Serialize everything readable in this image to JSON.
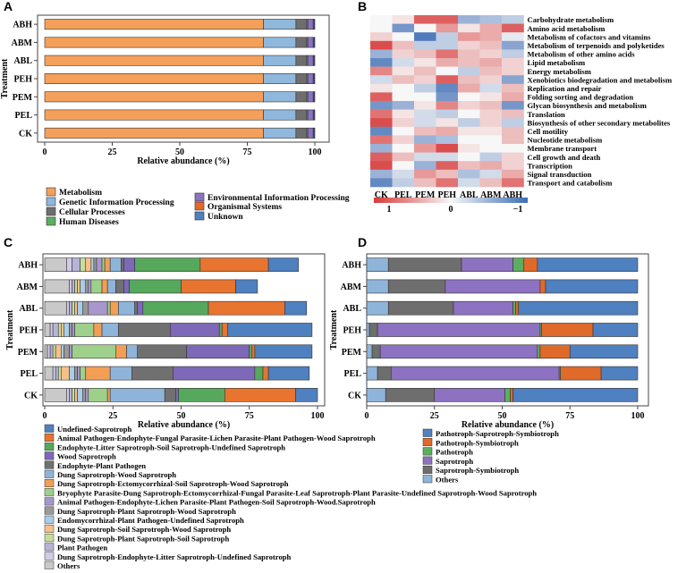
{
  "chart_data": [
    {
      "panel": "A",
      "type": "bar",
      "orientation": "horizontal",
      "stacked": true,
      "xlabel": "Relative abundance (%)",
      "ylabel": "Treatment",
      "xlim": [
        0,
        100
      ],
      "xticks": [
        "0",
        "25",
        "50",
        "75",
        "100"
      ],
      "categories": [
        "CK",
        "PEL",
        "PEM",
        "PEH",
        "ABL",
        "ABM",
        "ABH"
      ],
      "series": [
        {
          "name": "Metabolism",
          "color": "#F5A05A",
          "values": [
            81,
            81,
            81,
            81,
            81,
            81,
            81
          ]
        },
        {
          "name": "Genetic Information Processing",
          "color": "#8FB8DC",
          "values": [
            12,
            12,
            12,
            12,
            12,
            12,
            12
          ]
        },
        {
          "name": "Cellular Processes",
          "color": "#6E6E6E",
          "values": [
            4,
            4,
            4,
            4,
            4,
            4,
            4
          ]
        },
        {
          "name": "Human Diseases",
          "color": "#5BAE60",
          "values": [
            0.4,
            0.4,
            0.4,
            0.4,
            0.4,
            0.4,
            0.4
          ]
        },
        {
          "name": "Environmental Information Processing",
          "color": "#8C72C0",
          "values": [
            2,
            2,
            2,
            2,
            2,
            2,
            2
          ]
        },
        {
          "name": "Organismal Systems",
          "color": "#E06A2A",
          "values": [
            0.3,
            0.3,
            0.3,
            0.3,
            0.3,
            0.3,
            0.3
          ]
        },
        {
          "name": "Unknown",
          "color": "#4F80BF",
          "values": [
            0.3,
            0.3,
            0.3,
            0.3,
            0.3,
            0.3,
            0.3
          ]
        }
      ],
      "legend": [
        "Metabolism",
        "Genetic Information Processing",
        "Cellular Processes",
        "Human Diseases",
        "Environmental Information Processing",
        "Organismal Systems",
        "Unknown"
      ]
    },
    {
      "panel": "B",
      "type": "heatmap",
      "columns": [
        "CK",
        "PEL",
        "PEM",
        "PEH",
        "ABL",
        "ABM",
        "ABH"
      ],
      "rows": [
        "Carbohydrate metabolism",
        "Amino acid metabolism",
        "Metabolism of cofactors and vitamins",
        "Metabolism of terpenoids and polyketides",
        "Metabolism of other amino acids",
        "Lipid metabolism",
        "Energy metabolism",
        "Xenobiotics biodegradation and metabolism",
        "Replication and repair",
        "Folding sorting and degradation",
        "Glycan biosynthesis and metabolism",
        "Translation",
        "Biosynthesis of other secondary metabolites",
        "Cell motility",
        "Nucleotide metabolism",
        "Membrane transport",
        "Cell growth and death",
        "Transcription",
        "Signal transduction",
        "Transport and catabolism"
      ],
      "values": [
        [
          0.0,
          0.1,
          0.8,
          0.8,
          -0.5,
          -0.4,
          -0.3
        ],
        [
          0.0,
          -0.7,
          0.0,
          0.5,
          0.1,
          0.4,
          0.8
        ],
        [
          0.2,
          0.0,
          -0.9,
          -0.3,
          0.5,
          0.4,
          -0.1
        ],
        [
          0.9,
          0.3,
          -0.3,
          -0.3,
          0.2,
          0.3,
          -0.6
        ],
        [
          -0.5,
          0.2,
          0.3,
          0.7,
          0.3,
          0.2,
          -0.3
        ],
        [
          -0.8,
          -0.2,
          0.1,
          0.4,
          0.3,
          0.4,
          0.2
        ],
        [
          0.6,
          0.1,
          0.3,
          0.0,
          -0.3,
          0.3,
          0.2
        ],
        [
          -0.2,
          0.3,
          0.2,
          0.8,
          0.3,
          0.2,
          -0.6
        ],
        [
          0.1,
          0.0,
          -0.3,
          -0.8,
          0.4,
          -0.2,
          0.3
        ],
        [
          0.8,
          0.0,
          0.0,
          -0.7,
          0.0,
          0.1,
          0.4
        ],
        [
          -0.7,
          -0.5,
          0.1,
          0.6,
          0.2,
          0.3,
          -0.7
        ],
        [
          0.7,
          0.1,
          -0.2,
          -0.3,
          0.0,
          0.2,
          0.3
        ],
        [
          0.9,
          0.2,
          -0.2,
          0.1,
          -0.3,
          0.2,
          -0.3
        ],
        [
          -0.8,
          0.0,
          0.3,
          0.4,
          0.1,
          0.1,
          0.3
        ],
        [
          0.7,
          0.2,
          -0.5,
          -0.4,
          0.0,
          0.0,
          0.3
        ],
        [
          -0.5,
          0.0,
          0.5,
          0.9,
          0.1,
          0.0,
          0.0
        ],
        [
          0.8,
          0.3,
          -0.2,
          -0.2,
          0.0,
          -0.3,
          0.2
        ],
        [
          0.9,
          0.0,
          -0.5,
          0.8,
          0.3,
          0.4,
          0.2
        ],
        [
          -0.5,
          -0.2,
          0.5,
          0.3,
          -0.4,
          -0.2,
          0.4
        ],
        [
          -0.8,
          -0.3,
          0.3,
          0.7,
          -0.2,
          0.3,
          0.7
        ]
      ],
      "colorbar": {
        "min": -1,
        "max": 1,
        "ticks": [
          "1",
          "0",
          "−1"
        ],
        "low_color": "#D73A3A",
        "mid_color": "#F7F7F7",
        "high_color": "#3E6DB5"
      }
    },
    {
      "panel": "C",
      "type": "bar",
      "orientation": "horizontal",
      "stacked": true,
      "xlabel": "Relative abundance (%)",
      "ylabel": "Treatment",
      "xlim": [
        0,
        100
      ],
      "xticks": [
        "0",
        "25",
        "50",
        "75",
        "100"
      ],
      "categories": [
        "CK",
        "PEL",
        "PEM",
        "PEH",
        "ABL",
        "ABM",
        "ABH"
      ],
      "series": [
        {
          "name": "Others",
          "color": "#C9C9C9",
          "values": [
            8,
            3,
            1,
            2,
            8,
            9,
            8
          ]
        },
        {
          "name": "Dung Saprotroph-Endophyte-Litter Saprotroph-Undefined Saprotroph",
          "color": "#D2CBE6",
          "values": [
            1,
            1,
            1,
            1,
            1,
            1,
            2
          ]
        },
        {
          "name": "Plant Pathogen",
          "color": "#B7B2D8",
          "values": [
            1,
            1,
            1,
            2,
            1,
            1,
            3
          ]
        },
        {
          "name": "Dung Saprotroph-Plant Saprotroph-Soil Saprotroph",
          "color": "#C6DE9C",
          "values": [
            1,
            1,
            1,
            1,
            1,
            1,
            2
          ]
        },
        {
          "name": "Dung Saprotroph-Soil Saprotroph-Wood Saprotroph",
          "color": "#F7C08A",
          "values": [
            1,
            3,
            2,
            1,
            1,
            1,
            2
          ]
        },
        {
          "name": "Endomycorrhizal-Plant Pathogen-Undefined Saprotroph",
          "color": "#A9CDE6",
          "values": [
            2,
            2,
            1,
            2,
            2,
            2,
            1
          ]
        },
        {
          "name": "Dung Saprotroph-Plant Saprotroph-Wood Saprotroph",
          "color": "#999999",
          "values": [
            1,
            1,
            2,
            1,
            2,
            1,
            1
          ]
        },
        {
          "name": "Animal Pathogen-Endophyte-Lichen Parasite-Plant Pathogen-Soil Saprotroph-Wood.Saprotroph",
          "color": "#A797CC",
          "values": [
            1,
            1,
            1,
            1,
            7,
            1,
            2
          ]
        },
        {
          "name": "Bryophyte Parasite-Dung Saprotroph-Ectomycorrhizal-Fungal Parasite-Leaf Saprotroph-Plant Parasite-Undefined Saprotroph-Wood Saprotroph",
          "color": "#9ED08B",
          "values": [
            7,
            2,
            16,
            7,
            1,
            4,
            1
          ]
        },
        {
          "name": "Dung Saprotroph-Ectomycorrhizal-Soil Saprotroph-Wood Saprotroph",
          "color": "#F29E55",
          "values": [
            1,
            9,
            4,
            3,
            3,
            2,
            2
          ]
        },
        {
          "name": "Dung Saprotroph-Wood Saprotroph",
          "color": "#8FB4D9",
          "values": [
            20,
            8,
            4,
            6,
            6,
            3,
            4
          ]
        },
        {
          "name": "Endophyte-Plant Pathogen",
          "color": "#707070",
          "values": [
            4,
            15,
            18,
            19,
            1,
            3,
            1
          ]
        },
        {
          "name": "Wood Saprotroph",
          "color": "#7E68B8",
          "values": [
            1,
            30,
            23,
            18,
            2,
            2,
            4
          ]
        },
        {
          "name": "Endophyte-Litter Saprotroph-Soil Saprotroph-Undefined Saprotroph",
          "color": "#56A85C",
          "values": [
            17,
            3,
            1,
            1,
            24,
            19,
            24
          ]
        },
        {
          "name": "Animal Pathogen-Endophyte-Fungal Parasite-Lichen Parasite-Plant Pathogen-Wood Saprotroph",
          "color": "#E8742F",
          "values": [
            26,
            2,
            1,
            2,
            28,
            20,
            25
          ]
        },
        {
          "name": "Undefined-Saprotroph",
          "color": "#4F80BF",
          "values": [
            8,
            15,
            21,
            31,
            8,
            8,
            11
          ]
        }
      ],
      "legend": [
        "Undefined-Saprotroph",
        "Animal Pathogen-Endophyte-Fungal Parasite-Lichen Parasite-Plant Pathogen-Wood Saprotroph",
        "Endophyte-Litter Saprotroph-Soil Saprotroph-Undefined Saprotroph",
        "Wood Saprotroph",
        "Endophyte-Plant Pathogen",
        "Dung Saprotroph-Wood Saprotroph",
        "Dung Saprotroph-Ectomycorrhizal-Soil Saprotroph-Wood Saprotroph",
        "Bryophyte Parasite-Dung Saprotroph-Ectomycorrhizal-Fungal Parasite-Leaf Saprotroph-Plant Parasite-Undefined Saprotroph-Wood Saprotroph",
        "Animal Pathogen-Endophyte-Lichen Parasite-Plant Pathogen-Soil Saprotroph-Wood.Saprotroph",
        "Dung Saprotroph-Plant Saprotroph-Wood Saprotroph",
        "Endomycorrhizal-Plant Pathogen-Undefined Saprotroph",
        "Dung Saprotroph-Soil Saprotroph-Wood Saprotroph",
        "Dung Saprotroph-Plant Saprotroph-Soil Saprotroph",
        "Plant Pathogen",
        "Dung Saprotroph-Endophyte-Litter Saprotroph-Undefined Saprotroph",
        "Others"
      ]
    },
    {
      "panel": "D",
      "type": "bar",
      "orientation": "horizontal",
      "stacked": true,
      "xlabel": "Relative abundance (%)",
      "ylabel": "Treatment",
      "xlim": [
        0,
        100
      ],
      "xticks": [
        "0",
        "25",
        "50",
        "75",
        "100"
      ],
      "categories": [
        "CK",
        "PEL",
        "PEM",
        "PEH",
        "ABL",
        "ABM",
        "ABH"
      ],
      "series": [
        {
          "name": "Others",
          "color": "#8FB4D9",
          "values": [
            7,
            4,
            2,
            1,
            8,
            8,
            8
          ]
        },
        {
          "name": "Saprotroph-Symbiotroph",
          "color": "#6E6E6E",
          "values": [
            18,
            5,
            3,
            3,
            24,
            21,
            27
          ]
        },
        {
          "name": "Saprotroph",
          "color": "#8C72C0",
          "values": [
            26,
            62,
            58,
            60,
            22,
            35,
            19
          ]
        },
        {
          "name": "Pathotroph",
          "color": "#5BAE60",
          "values": [
            2,
            0.5,
            1,
            0.5,
            1,
            0,
            4
          ]
        },
        {
          "name": "Pathotroph-Symbiotroph",
          "color": "#E06A2A",
          "values": [
            1,
            15,
            11,
            19,
            1,
            2,
            5
          ]
        },
        {
          "name": "Pathotroph-Saprotroph-Symbiotroph",
          "color": "#4F80BF",
          "values": [
            46,
            13.5,
            25,
            16.5,
            44,
            34,
            37
          ]
        }
      ],
      "legend": [
        "Pathotroph-Saprotroph-Symbiotroph",
        "Pathotroph-Symbiotroph",
        "Pathotroph",
        "Saprotroph",
        "Saprotroph-Symbiotroph",
        "Others"
      ]
    }
  ]
}
